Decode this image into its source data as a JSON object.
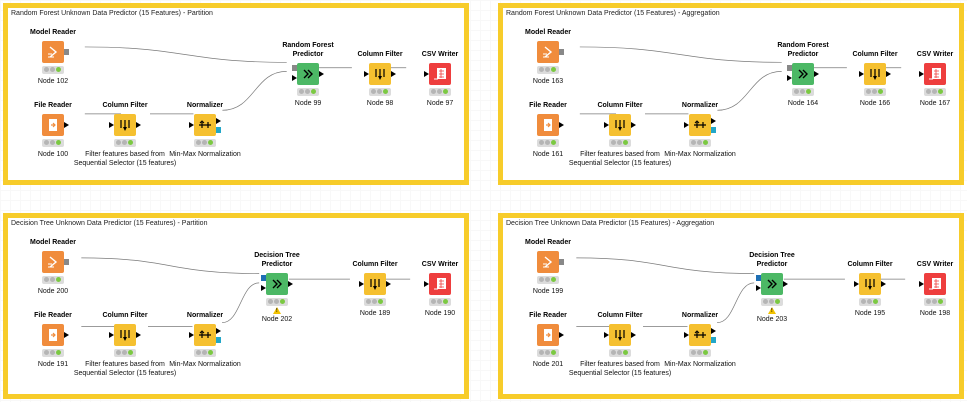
{
  "workflow": {
    "panels": [
      {
        "title": "Random Forest Unknown Data Predictor (15 Features) - Partition",
        "nodes": {
          "model_reader": {
            "label": "Model Reader",
            "name": "Node 102"
          },
          "file_reader": {
            "label": "File Reader",
            "name": "Node 100"
          },
          "column_filter_1": {
            "label": "Column Filter",
            "name": "Filter features based from Sequential Selector (15 features)"
          },
          "normalizer": {
            "label": "Normalizer",
            "name": "Min-Max Normalization"
          },
          "predictor": {
            "label": "Random Forest Predictor",
            "name": "Node 99"
          },
          "column_filter_2": {
            "label": "Column Filter",
            "name": "Node 98"
          },
          "csv_writer": {
            "label": "CSV Writer",
            "name": "Node 97"
          }
        }
      },
      {
        "title": "Random Forest Unknown Data Predictor (15 Features) - Aggregation",
        "nodes": {
          "model_reader": {
            "label": "Model Reader",
            "name": "Node 163"
          },
          "file_reader": {
            "label": "File Reader",
            "name": "Node 161"
          },
          "column_filter_1": {
            "label": "Column Filter",
            "name": "Filter features based from Sequential Selector (15 features)"
          },
          "normalizer": {
            "label": "Normalizer",
            "name": "Min-Max Normalization"
          },
          "predictor": {
            "label": "Random Forest Predictor",
            "name": "Node 164"
          },
          "column_filter_2": {
            "label": "Column Filter",
            "name": "Node 166"
          },
          "csv_writer": {
            "label": "CSV Writer",
            "name": "Node 167"
          }
        }
      },
      {
        "title": "Decision Tree Unknown Data Predictor (15 Features) - Partition",
        "nodes": {
          "model_reader": {
            "label": "Model Reader",
            "name": "Node 200"
          },
          "file_reader": {
            "label": "File Reader",
            "name": "Node 191"
          },
          "column_filter_1": {
            "label": "Column Filter",
            "name": "Filter features based from Sequential Selector (15 features)"
          },
          "normalizer": {
            "label": "Normalizer",
            "name": "Min-Max Normalization"
          },
          "predictor": {
            "label": "Decision Tree Predictor",
            "name": "Node 202"
          },
          "column_filter_2": {
            "label": "Column Filter",
            "name": "Node 189"
          },
          "csv_writer": {
            "label": "CSV Writer",
            "name": "Node 190"
          }
        }
      },
      {
        "title": "Decision Tree Unknown Data Predictor (15 Features) - Aggregation",
        "nodes": {
          "model_reader": {
            "label": "Model Reader",
            "name": "Node 199"
          },
          "file_reader": {
            "label": "File Reader",
            "name": "Node 201"
          },
          "column_filter_1": {
            "label": "Column Filter",
            "name": "Filter features based from Sequential Selector (15 features)"
          },
          "normalizer": {
            "label": "Normalizer",
            "name": "Min-Max Normalization"
          },
          "predictor": {
            "label": "Decision Tree Predictor",
            "name": "Node 203"
          },
          "column_filter_2": {
            "label": "Column Filter",
            "name": "Node 195"
          },
          "csv_writer": {
            "label": "CSV Writer",
            "name": "Node 198"
          }
        }
      }
    ],
    "colors": {
      "annotation_border": "#f7cc2a",
      "reader_node": "#f08c3c",
      "manipulator_node": "#f5c030",
      "predictor_node": "#4cb865",
      "writer_node": "#ee3e3e",
      "status_ok": "#7bc942",
      "warning": "#f2c200",
      "model_port": "#888888",
      "pmml_port": "#22a7c9"
    },
    "icons": {
      "model_reader": "model-reader-icon",
      "file_reader": "file-reader-icon",
      "column_filter": "filter-icon",
      "normalizer": "normalizer-icon",
      "predictor": "predictor-icon",
      "csv_writer": "csv-writer-icon"
    }
  }
}
